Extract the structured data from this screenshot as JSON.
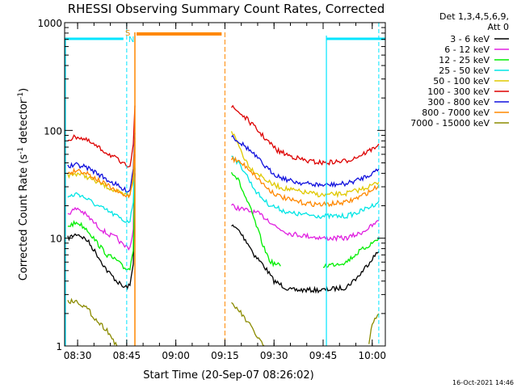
{
  "chart_data": {
    "type": "line",
    "title": "RHESSI Observing Summary Count Rates, Corrected",
    "xlabel": "Start Time (20-Sep-07 08:26:02)",
    "ylabel_main": "Corrected Count Rate (s",
    "ylabel_sup1": "-1",
    "ylabel_mid": " detector",
    "ylabel_sup2": "-1",
    "ylabel_end": ")",
    "yscale": "log",
    "ylim": [
      1,
      1000
    ],
    "xlim": [
      "08:26:02",
      "10:04:00"
    ],
    "x_ticks": [
      "08:30",
      "08:45",
      "09:00",
      "09:15",
      "09:30",
      "09:45",
      "10:00"
    ],
    "y_ticks": [
      "1",
      "10",
      "100",
      "1000"
    ],
    "legend_header": [
      "Det 1,3,4,5,6,9,",
      "Att 0"
    ],
    "legend_position": "right",
    "flags": [
      {
        "label": "N",
        "color": "#00e5ff"
      },
      {
        "label": "S",
        "color": "#ff8800"
      }
    ],
    "vertical_markers": [
      "08:45",
      "09:15",
      "09:45",
      "10:02"
    ],
    "series": [
      {
        "name": "3 - 6 keV",
        "color": "#000000",
        "points": [
          [
            "08:27",
            10
          ],
          [
            "08:30",
            11
          ],
          [
            "08:33",
            9.5
          ],
          [
            "08:36",
            7
          ],
          [
            "08:39",
            5
          ],
          [
            "08:42",
            4
          ],
          [
            "08:44",
            3.5
          ],
          [
            "08:46",
            3.6
          ],
          [
            "08:47",
            6
          ],
          [
            "08:47:30",
            40
          ],
          [
            "09:17",
            13
          ],
          [
            "09:19",
            12
          ],
          [
            "09:22",
            9
          ],
          [
            "09:24",
            7
          ],
          [
            "09:27",
            5.5
          ],
          [
            "09:30",
            4
          ],
          [
            "09:35",
            3.3
          ],
          [
            "09:45",
            3.3
          ],
          [
            "09:52",
            3.5
          ],
          [
            "09:56",
            4.5
          ],
          [
            "10:00",
            6.5
          ],
          [
            "10:02",
            7.5
          ]
        ]
      },
      {
        "name": "6 - 12 keV",
        "color": "#e020e0",
        "points": [
          [
            "08:27",
            17
          ],
          [
            "08:30",
            19
          ],
          [
            "08:33",
            16
          ],
          [
            "08:36",
            13
          ],
          [
            "08:39",
            11
          ],
          [
            "08:42",
            10
          ],
          [
            "08:44",
            8.5
          ],
          [
            "08:46",
            8.2
          ],
          [
            "08:47",
            12
          ],
          [
            "08:47:30",
            60
          ],
          [
            "09:17",
            20
          ],
          [
            "09:19",
            19
          ],
          [
            "09:22",
            18
          ],
          [
            "09:25",
            17
          ],
          [
            "09:28",
            15
          ],
          [
            "09:31",
            12.5
          ],
          [
            "09:35",
            11
          ],
          [
            "09:45",
            10
          ],
          [
            "09:52",
            10
          ],
          [
            "09:56",
            11
          ],
          [
            "10:00",
            13
          ],
          [
            "10:02",
            14.5
          ]
        ]
      },
      {
        "name": "12 - 25 keV",
        "color": "#00ee00",
        "points": [
          [
            "08:27",
            13
          ],
          [
            "08:30",
            14
          ],
          [
            "08:33",
            12
          ],
          [
            "08:36",
            9
          ],
          [
            "08:39",
            7
          ],
          [
            "08:42",
            6.2
          ],
          [
            "08:44",
            5.3
          ],
          [
            "08:46",
            5.2
          ],
          [
            "08:47",
            8
          ],
          [
            "08:47:30",
            45
          ],
          [
            "09:17",
            42
          ],
          [
            "09:19",
            35
          ],
          [
            "09:21",
            25
          ],
          [
            "09:23",
            18
          ],
          [
            "09:25",
            12
          ],
          [
            "09:27",
            8
          ],
          [
            "09:29",
            6
          ],
          [
            "09:32",
            5.5
          ],
          [
            "09:45",
            5.5
          ],
          [
            "09:52",
            6
          ],
          [
            "09:56",
            7.5
          ],
          [
            "10:00",
            9
          ],
          [
            "10:02",
            10
          ]
        ]
      },
      {
        "name": "25 - 50 keV",
        "color": "#00e5e5",
        "points": [
          [
            "08:27",
            24
          ],
          [
            "08:30",
            26
          ],
          [
            "08:33",
            23
          ],
          [
            "08:36",
            20
          ],
          [
            "08:39",
            18
          ],
          [
            "08:42",
            16
          ],
          [
            "08:44",
            14.5
          ],
          [
            "08:46",
            14.5
          ],
          [
            "08:47",
            22
          ],
          [
            "08:47:30",
            70
          ],
          [
            "09:17",
            60
          ],
          [
            "09:19",
            50
          ],
          [
            "09:21",
            42
          ],
          [
            "09:23",
            32
          ],
          [
            "09:25",
            26
          ],
          [
            "09:28",
            21
          ],
          [
            "09:31",
            19
          ],
          [
            "09:35",
            17
          ],
          [
            "09:45",
            16
          ],
          [
            "09:52",
            16
          ],
          [
            "09:56",
            17.5
          ],
          [
            "10:00",
            20
          ],
          [
            "10:02",
            22
          ]
        ]
      },
      {
        "name": "50 - 100 keV",
        "color": "#e0c800",
        "points": [
          [
            "08:27",
            38
          ],
          [
            "08:30",
            40
          ],
          [
            "08:33",
            37
          ],
          [
            "08:36",
            33
          ],
          [
            "08:39",
            30
          ],
          [
            "08:42",
            27
          ],
          [
            "08:44",
            25
          ],
          [
            "08:46",
            25
          ],
          [
            "08:47",
            35
          ],
          [
            "08:47:30",
            80
          ],
          [
            "09:17",
            100
          ],
          [
            "09:19",
            75
          ],
          [
            "09:21",
            55
          ],
          [
            "09:23",
            44
          ],
          [
            "09:26",
            38
          ],
          [
            "09:29",
            32
          ],
          [
            "09:33",
            29
          ],
          [
            "09:38",
            27
          ],
          [
            "09:45",
            25
          ],
          [
            "09:52",
            26
          ],
          [
            "09:56",
            28
          ],
          [
            "10:00",
            31
          ],
          [
            "10:02",
            33
          ]
        ]
      },
      {
        "name": "100 - 300 keV",
        "color": "#dd0000",
        "points": [
          [
            "08:27",
            82
          ],
          [
            "08:30",
            88
          ],
          [
            "08:33",
            80
          ],
          [
            "08:36",
            70
          ],
          [
            "08:39",
            62
          ],
          [
            "08:42",
            54
          ],
          [
            "08:44",
            48
          ],
          [
            "08:46",
            48
          ],
          [
            "08:47",
            75
          ],
          [
            "08:47:30",
            170
          ],
          [
            "09:17",
            165
          ],
          [
            "09:19",
            150
          ],
          [
            "09:22",
            125
          ],
          [
            "09:25",
            100
          ],
          [
            "09:28",
            80
          ],
          [
            "09:31",
            65
          ],
          [
            "09:35",
            58
          ],
          [
            "09:40",
            52
          ],
          [
            "09:45",
            50
          ],
          [
            "09:52",
            52
          ],
          [
            "09:56",
            58
          ],
          [
            "10:00",
            67
          ],
          [
            "10:02",
            75
          ]
        ]
      },
      {
        "name": "300 - 800 keV",
        "color": "#1010dd",
        "points": [
          [
            "08:27",
            46
          ],
          [
            "08:30",
            48
          ],
          [
            "08:33",
            45
          ],
          [
            "08:36",
            40
          ],
          [
            "08:39",
            35
          ],
          [
            "08:42",
            31
          ],
          [
            "08:44",
            28
          ],
          [
            "08:46",
            28
          ],
          [
            "08:47",
            45
          ],
          [
            "08:47:30",
            95
          ],
          [
            "09:17",
            90
          ],
          [
            "09:19",
            80
          ],
          [
            "09:22",
            68
          ],
          [
            "09:25",
            55
          ],
          [
            "09:28",
            44
          ],
          [
            "09:31",
            38
          ],
          [
            "09:35",
            34
          ],
          [
            "09:40",
            32
          ],
          [
            "09:45",
            31
          ],
          [
            "09:52",
            32
          ],
          [
            "09:56",
            35
          ],
          [
            "10:00",
            40
          ],
          [
            "10:02",
            44
          ]
        ]
      },
      {
        "name": "800 - 7000 keV",
        "color": "#ff8800",
        "points": [
          [
            "08:27",
            40
          ],
          [
            "08:30",
            43
          ],
          [
            "08:33",
            40
          ],
          [
            "08:36",
            35
          ],
          [
            "08:39",
            31
          ],
          [
            "08:42",
            27
          ],
          [
            "08:44",
            25
          ],
          [
            "08:46",
            25
          ],
          [
            "08:47",
            40
          ],
          [
            "08:47:30",
            85
          ],
          [
            "09:17",
            55
          ],
          [
            "09:19",
            52
          ],
          [
            "09:22",
            45
          ],
          [
            "09:25",
            36
          ],
          [
            "09:28",
            29
          ],
          [
            "09:31",
            25
          ],
          [
            "09:35",
            22.5
          ],
          [
            "09:40",
            21
          ],
          [
            "09:45",
            20.5
          ],
          [
            "09:52",
            21.5
          ],
          [
            "09:56",
            24
          ],
          [
            "10:00",
            28
          ],
          [
            "10:02",
            31
          ]
        ]
      },
      {
        "name": "7000 - 15000 keV",
        "color": "#8b8b00",
        "points": [
          [
            "08:27",
            2.6
          ],
          [
            "08:30",
            2.6
          ],
          [
            "08:33",
            2.2
          ],
          [
            "08:36",
            1.7
          ],
          [
            "08:39",
            1.4
          ],
          [
            "08:42",
            1.0
          ],
          [
            "09:17",
            2.4
          ],
          [
            "09:19",
            2.2
          ],
          [
            "09:21",
            1.8
          ],
          [
            "09:23",
            1.5
          ],
          [
            "09:25",
            1.2
          ],
          [
            "09:27",
            1.0
          ],
          [
            "09:59",
            1.0
          ],
          [
            "10:00",
            1.6
          ],
          [
            "10:02",
            2.0
          ]
        ]
      }
    ],
    "footer_date": "16-Oct-2021 14:46"
  }
}
